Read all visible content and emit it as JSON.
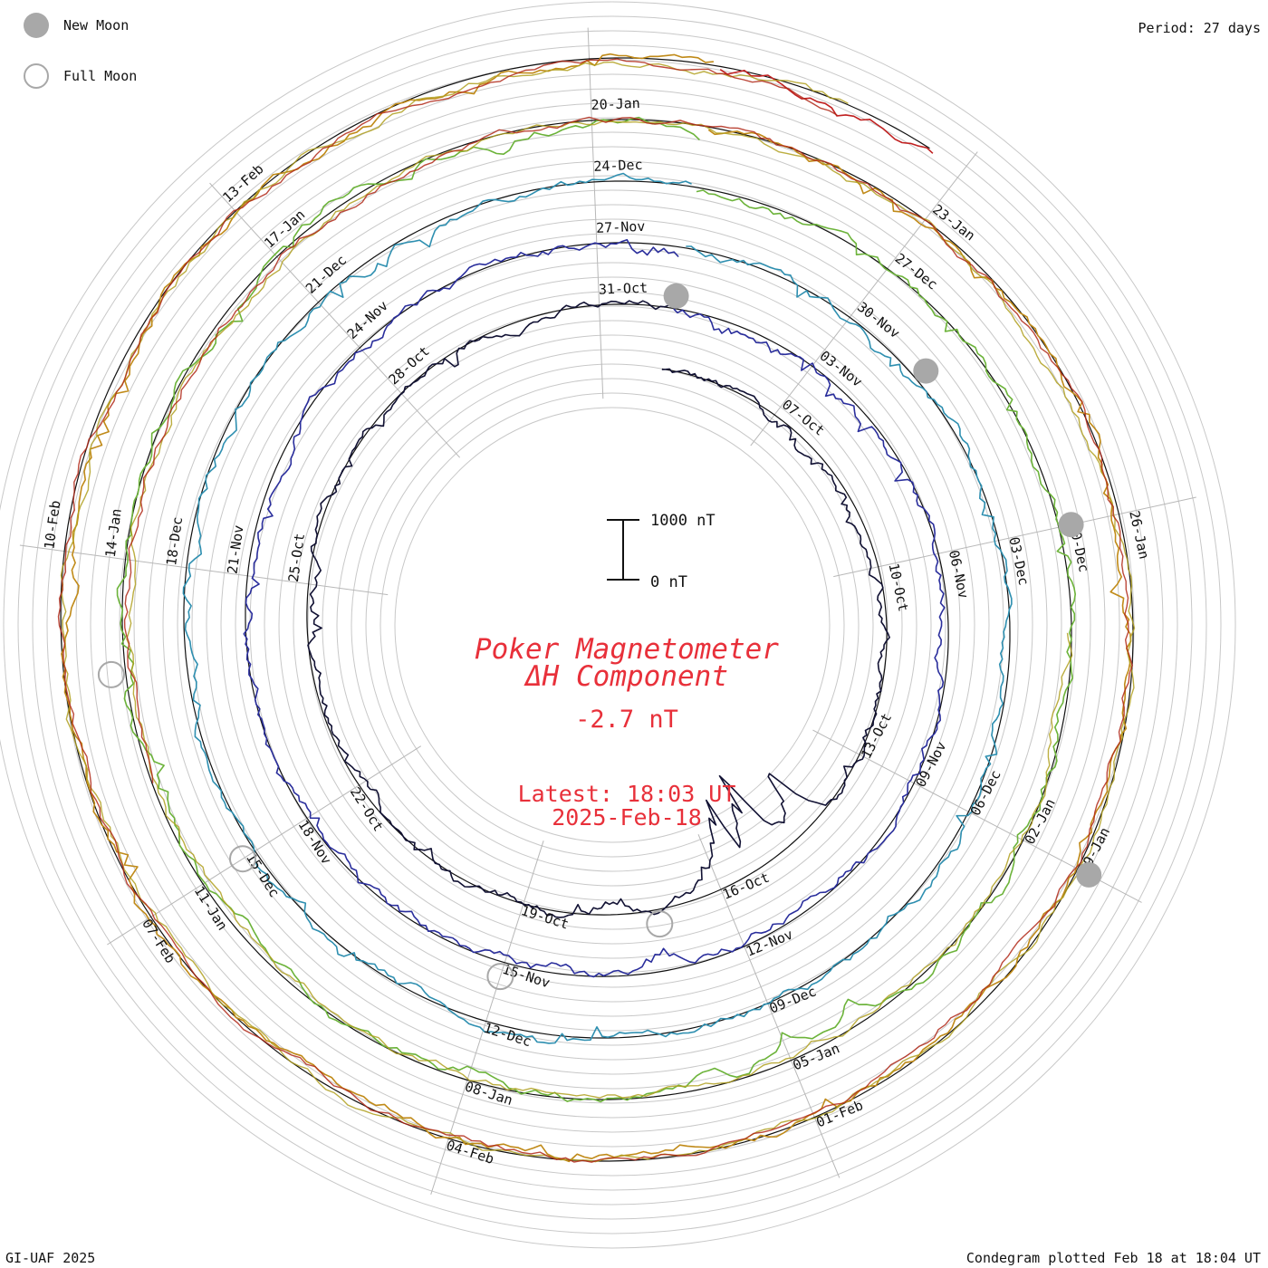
{
  "legend": {
    "new_moon": "New Moon",
    "full_moon": "Full Moon",
    "new_color": "#a8a8a8",
    "full_color": "#a8a8a8"
  },
  "period_label": "Period: 27 days",
  "credit": "GI-UAF 2025",
  "plotted": "Condegram plotted Feb 18 at 18:04 UT",
  "chart_data": {
    "type": "line",
    "subtype": "condegram-spiral",
    "title_line1": "Poker Magnetometer",
    "title_line2": "ΔH Component",
    "current_value": "-2.7 nT",
    "latest_time": "Latest: 18:03 UT",
    "latest_date": "2025-Feb-18",
    "scale_bar": {
      "top_label": "1000 nT",
      "bottom_label": "0 nT",
      "top_value": 1000,
      "bottom_value": 0
    },
    "period_days": 27,
    "start_date": "2024-10-05",
    "end_date": "2025-02-18",
    "grid": true,
    "legend_position": "top-left",
    "title_color": "#e8303a",
    "date_labels": [
      "07-Oct",
      "10-Oct",
      "13-Oct",
      "16-Oct",
      "19-Oct",
      "22-Oct",
      "25-Oct",
      "28-Oct",
      "31-Oct",
      "03-Nov",
      "06-Nov",
      "09-Nov",
      "12-Nov",
      "15-Nov",
      "18-Nov",
      "21-Nov",
      "24-Nov",
      "27-Nov",
      "30-Nov",
      "03-Dec",
      "06-Dec",
      "09-Dec",
      "12-Dec",
      "15-Dec",
      "18-Dec",
      "21-Dec",
      "24-Dec",
      "27-Dec",
      "30-Dec",
      "02-Jan",
      "05-Jan",
      "08-Jan",
      "11-Jan",
      "14-Jan",
      "17-Jan",
      "20-Jan",
      "23-Jan",
      "26-Jan",
      "29-Jan",
      "01-Feb",
      "04-Feb",
      "07-Feb",
      "10-Feb",
      "13-Feb"
    ],
    "new_moons": [
      "2024-11-01",
      "2024-12-01",
      "2024-12-30",
      "2025-01-29"
    ],
    "full_moons": [
      "2024-10-17",
      "2024-11-15",
      "2024-12-15",
      "2025-01-13"
    ],
    "rotations": [
      {
        "start": "2024-10-05",
        "color": "#111133",
        "baseline_nT": 0,
        "events": [
          {
            "x": 9.2,
            "y": -600
          },
          {
            "x": 10.0,
            "y": -900
          },
          {
            "x": 10.6,
            "y": -750
          },
          {
            "x": 12.5,
            "y": -150
          },
          {
            "x": 2.7,
            "y": -120
          },
          {
            "x": 4.2,
            "y": -110
          },
          {
            "x": 15.6,
            "y": -120
          },
          {
            "x": 19.4,
            "y": -110
          }
        ]
      },
      {
        "start": "2024-11-01",
        "color": "#2a2e9c",
        "baseline_nT": 0,
        "events": [
          {
            "x": 0.6,
            "y": -100
          },
          {
            "x": 12.0,
            "y": -150
          },
          {
            "x": 13.3,
            "y": -120
          },
          {
            "x": 20.8,
            "y": -110
          },
          {
            "x": 26.5,
            "y": -130
          }
        ]
      },
      {
        "start": "2024-11-28",
        "color": "#2e8fb0",
        "baseline_nT": 0,
        "events": [
          {
            "x": 2.5,
            "y": -90
          },
          {
            "x": 16.3,
            "y": -70
          },
          {
            "x": 20.2,
            "y": -110
          },
          {
            "x": 23.6,
            "y": -100
          }
        ]
      },
      {
        "start": "2024-12-25",
        "color": "#6cb33a",
        "baseline_nT": 0,
        "events": [
          {
            "x": 10.3,
            "y": -300
          },
          {
            "x": 11.0,
            "y": -260
          },
          {
            "x": 11.8,
            "y": -180
          },
          {
            "x": 13.8,
            "y": -150
          },
          {
            "x": 25.2,
            "y": -120
          }
        ]
      },
      {
        "start": "2025-01-21",
        "color": "#c08a18",
        "baseline_nT": 0,
        "events": [
          {
            "x": 5.6,
            "y": -90
          },
          {
            "x": 7.5,
            "y": -70
          },
          {
            "x": 13.3,
            "y": -110
          },
          {
            "x": 19.7,
            "y": -130
          },
          {
            "x": 24.9,
            "y": -90
          }
        ]
      },
      {
        "start": "2025-02-17",
        "color": "#c02020",
        "baseline_nT": 0,
        "events": []
      }
    ],
    "extra_arcs": [
      {
        "start": "2024-12-31",
        "end": "2025-02-18",
        "color": "#b0a020"
      },
      {
        "start": "2025-01-12",
        "end": "2025-02-18",
        "color": "#b02818"
      }
    ]
  }
}
